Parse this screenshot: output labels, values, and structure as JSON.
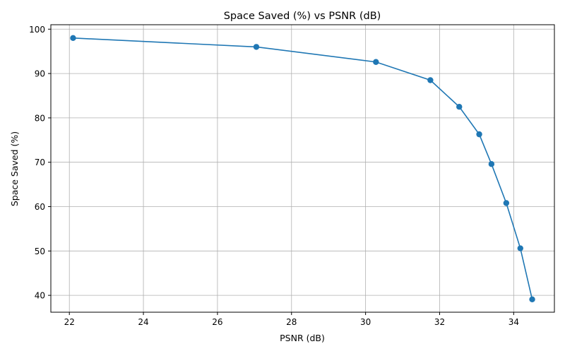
{
  "chart_data": {
    "type": "line",
    "title": "Space Saved (%) vs PSNR (dB)",
    "xlabel": "PSNR (dB)",
    "ylabel": "Space Saved (%)",
    "xlim": [
      21.5,
      35.1
    ],
    "ylim": [
      36.2,
      101.0
    ],
    "x_ticks": [
      22,
      24,
      26,
      28,
      30,
      32,
      34
    ],
    "y_ticks": [
      40,
      50,
      60,
      70,
      80,
      90,
      100
    ],
    "grid": true,
    "series": [
      {
        "color": "#1f77b4",
        "marker": "circle",
        "points": [
          {
            "x": 22.1,
            "y": 98.0
          },
          {
            "x": 27.05,
            "y": 96.0
          },
          {
            "x": 30.28,
            "y": 92.6
          },
          {
            "x": 31.75,
            "y": 88.5
          },
          {
            "x": 32.53,
            "y": 82.5
          },
          {
            "x": 33.07,
            "y": 76.3
          },
          {
            "x": 33.4,
            "y": 69.6
          },
          {
            "x": 33.8,
            "y": 60.8
          },
          {
            "x": 34.18,
            "y": 50.6
          },
          {
            "x": 34.5,
            "y": 39.1
          }
        ]
      }
    ]
  }
}
